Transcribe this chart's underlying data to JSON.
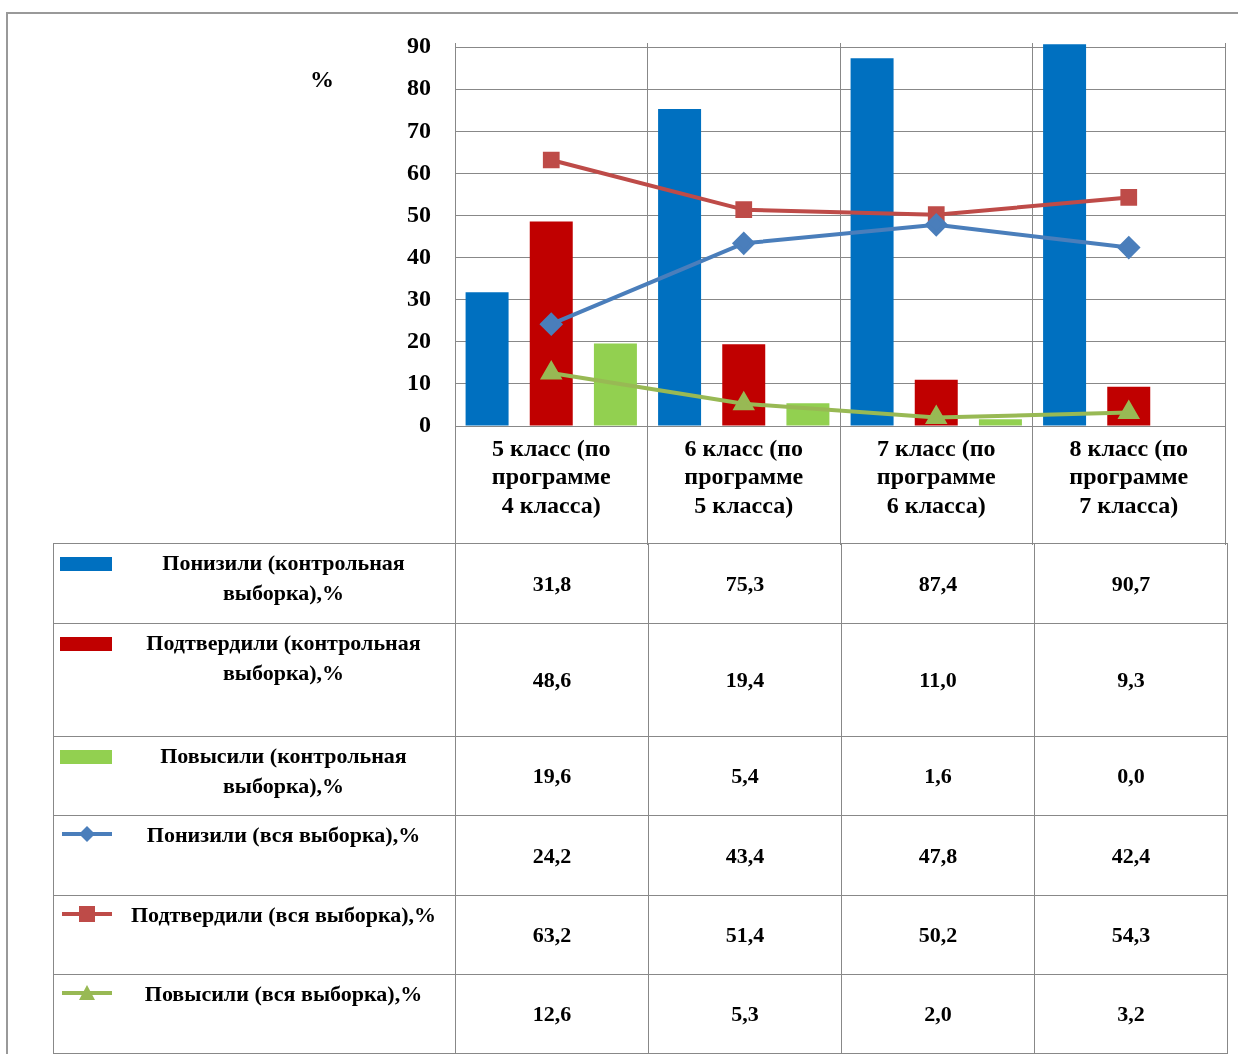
{
  "chart_data": {
    "type": "bar",
    "ylabel": "%",
    "legend": "bottom",
    "categories": [
      "5 класс (по программе 4 класса)",
      "6 класс (по программе 5 класса)",
      "7 класс (по программе 6 класса)",
      "8 класс (по программе 7 класса)"
    ],
    "series": [
      {
        "name": "Понизили (контрольная выборка),%",
        "color": "#0070c0",
        "values": [
          31.8,
          75.3,
          87.4,
          90.7
        ],
        "value_labels": [
          "31,8",
          "75,3",
          "87,4",
          "90,7"
        ]
      },
      {
        "name": "Подтвердили (контрольная выборка),%",
        "color": "#c00000",
        "values": [
          48.6,
          19.4,
          11.0,
          9.3
        ],
        "value_labels": [
          "48,6",
          "19,4",
          "11,0",
          "9,3"
        ]
      },
      {
        "name": "Повысили (контрольная выборка),%",
        "color": "#92d050",
        "values": [
          19.6,
          5.4,
          1.6,
          0.0
        ],
        "value_labels": [
          "19,6",
          "5,4",
          "1,6",
          "0,0"
        ]
      },
      {
        "name": "Понизили (вся выборка),%",
        "type": "line",
        "marker": "diamond",
        "color": "#4a7ebb",
        "values": [
          24.2,
          43.4,
          47.8,
          42.4
        ],
        "value_labels": [
          "24,2",
          "43,4",
          "47,8",
          "42,4"
        ]
      },
      {
        "name": "Подтвердили (вся выборка),%",
        "type": "line",
        "marker": "square",
        "color": "#be4b48",
        "values": [
          63.2,
          51.4,
          50.2,
          54.3
        ],
        "value_labels": [
          "63,2",
          "51,4",
          "50,2",
          "54,3"
        ]
      },
      {
        "name": "Повысили (вся выборка),%",
        "type": "line",
        "marker": "triangle",
        "color": "#98b954",
        "values": [
          12.6,
          5.3,
          2.0,
          3.2
        ],
        "value_labels": [
          "12,6",
          "5,3",
          "2,0",
          "3,2"
        ]
      }
    ],
    "ylim": [
      0,
      91
    ],
    "yticks": [
      0,
      10,
      20,
      30,
      40,
      50,
      60,
      70,
      80,
      90
    ],
    "grid": true
  }
}
